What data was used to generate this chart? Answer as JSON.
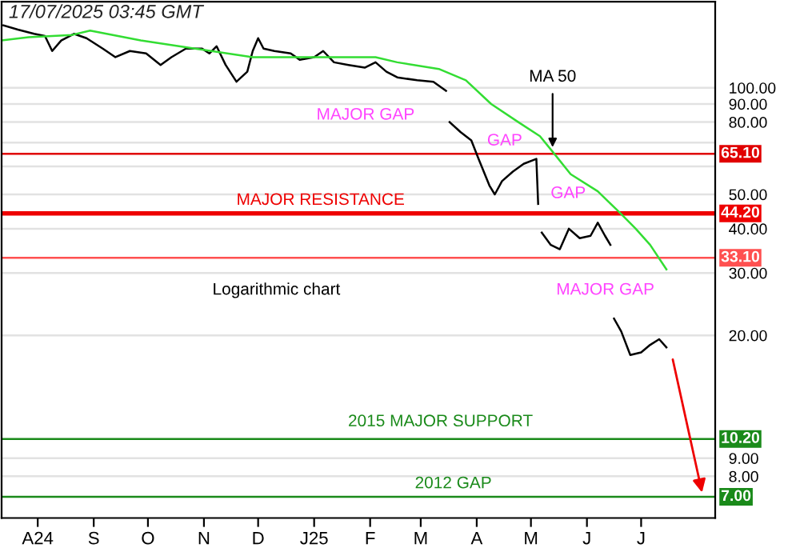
{
  "chart_data": {
    "type": "line",
    "x": [
      "2024-07-13",
      "2024-07-21",
      "2024-07-30",
      "2024-08-05",
      "2024-08-09",
      "2024-08-14",
      "2024-08-21",
      "2024-08-28",
      "2024-09-06",
      "2024-09-13",
      "2024-09-21",
      "2024-09-30",
      "2024-10-08",
      "2024-10-14",
      "2024-10-22",
      "2024-10-31",
      "2024-11-04",
      "2024-11-08",
      "2024-11-13",
      "2024-11-19",
      "2024-11-25",
      "2024-11-28",
      "2024-12-01",
      "2024-12-04",
      "2024-12-10",
      "2024-12-19",
      "2024-12-24",
      "2025-01-01",
      "2025-01-06",
      "2025-01-12",
      "2025-01-20",
      "2025-01-29",
      "2025-02-04",
      "2025-02-10",
      "2025-02-16",
      "2025-02-27",
      "2025-03-08",
      "2025-03-15",
      "2025-03-16",
      "2025-03-17",
      "2025-03-23",
      "2025-03-29",
      "2025-04-02",
      "2025-04-08",
      "2025-04-11",
      "2025-04-15",
      "2025-04-21",
      "2025-04-27",
      "2025-05-04",
      "2025-05-05",
      "2025-05-06",
      "2025-05-07",
      "2025-05-12",
      "2025-05-17",
      "2025-05-22",
      "2025-05-28",
      "2025-06-03",
      "2025-06-07",
      "2025-06-11",
      "2025-06-14",
      "2025-06-15",
      "2025-06-16",
      "2025-06-20",
      "2025-06-25",
      "2025-07-01",
      "2025-07-06",
      "2025-07-11",
      "2025-07-15"
    ],
    "series": [
      {
        "color": "#000000",
        "values": [
          150,
          146,
          142,
          140,
          127,
          136,
          142,
          138,
          129,
          122,
          127,
          125,
          116,
          122,
          129,
          129,
          125,
          131,
          116,
          104,
          111,
          127,
          138,
          129,
          127,
          125,
          120,
          122,
          127,
          118,
          116,
          114,
          118,
          111,
          107,
          105,
          104,
          98,
          null,
          80,
          75,
          71,
          63,
          53,
          50,
          54.5,
          58,
          61,
          63,
          47,
          null,
          39,
          36,
          35,
          40,
          37.6,
          38.2,
          41.6,
          38.2,
          36,
          null,
          22.3,
          20.5,
          17.6,
          17.9,
          18.8,
          19.5,
          18.5
        ]
      },
      {
        "name": "MA 50",
        "color": "#33dd33",
        "x": [
          "2024-07-12",
          "2024-07-27",
          "2024-08-20",
          "2024-08-30",
          "2024-09-27",
          "2024-10-27",
          "2024-11-28",
          "2024-12-24",
          "2025-02-04",
          "2025-02-16",
          "2025-03-11",
          "2025-03-26",
          "2025-04-09",
          "2025-04-24",
          "2025-05-06",
          "2025-05-13",
          "2025-05-23",
          "2025-06-07",
          "2025-06-19",
          "2025-06-28",
          "2025-07-06",
          "2025-07-15"
        ],
        "values": [
          136,
          139,
          141,
          145,
          136,
          129,
          122,
          122,
          122,
          118,
          113,
          105,
          90,
          80,
          73,
          66,
          57,
          51,
          44.5,
          40,
          36,
          30.7
        ]
      }
    ],
    "log": "y",
    "xlim": [
      "2024-07-12",
      "2025-08-11"
    ],
    "xticks": [
      {
        "value": "2024-08-01",
        "label": "A24"
      },
      {
        "value": "2024-09-01",
        "label": "S"
      },
      {
        "value": "2024-10-01",
        "label": "O"
      },
      {
        "value": "2024-11-01",
        "label": "N"
      },
      {
        "value": "2024-12-01",
        "label": "D"
      },
      {
        "value": "2025-01-01",
        "label": "J25"
      },
      {
        "value": "2025-02-01",
        "label": "F"
      },
      {
        "value": "2025-03-01",
        "label": "M"
      },
      {
        "value": "2025-04-01",
        "label": "A"
      },
      {
        "value": "2025-05-01",
        "label": "M"
      },
      {
        "value": "2025-06-01",
        "label": "J"
      },
      {
        "value": "2025-07-01",
        "label": "J"
      }
    ],
    "ylim": [
      6.1,
      175
    ],
    "yticks": [
      {
        "value": 8,
        "label": "8.00"
      },
      {
        "value": 9,
        "label": "9.00"
      },
      {
        "value": 20,
        "label": "20.00"
      },
      {
        "value": 30,
        "label": "30.00"
      },
      {
        "value": 40,
        "label": "40.00"
      },
      {
        "value": 50,
        "label": "50.00"
      },
      {
        "value": 60,
        "label": null
      },
      {
        "value": 70,
        "label": null
      },
      {
        "value": 80,
        "label": "80.00"
      },
      {
        "value": 90,
        "label": "90.00"
      },
      {
        "value": 100,
        "label": "100.00"
      }
    ],
    "grid": "y",
    "ref_lines": [
      {
        "axis": "y",
        "value": 65.1,
        "label": "65.10",
        "color": "#e00000"
      },
      {
        "axis": "y",
        "value": 44.2,
        "label": "44.20",
        "color": "#ee0000"
      },
      {
        "axis": "y",
        "value": 33.1,
        "label": "33.10",
        "color": "#ff5050"
      },
      {
        "axis": "y",
        "value": 10.2,
        "label": "10.20",
        "color": "#1a8a1a"
      },
      {
        "axis": "y",
        "value": 7.0,
        "label": "7.00",
        "color": "#1a8a1a"
      }
    ],
    "annotations": [
      "17/07/2025 03:45 GMT",
      "MAJOR GAP",
      "GAP",
      "GAP",
      "MAJOR GAP",
      "Logarithmic chart",
      "MAJOR RESISTANCE",
      "2015 MAJOR SUPPORT",
      "2012 GAP"
    ]
  }
}
